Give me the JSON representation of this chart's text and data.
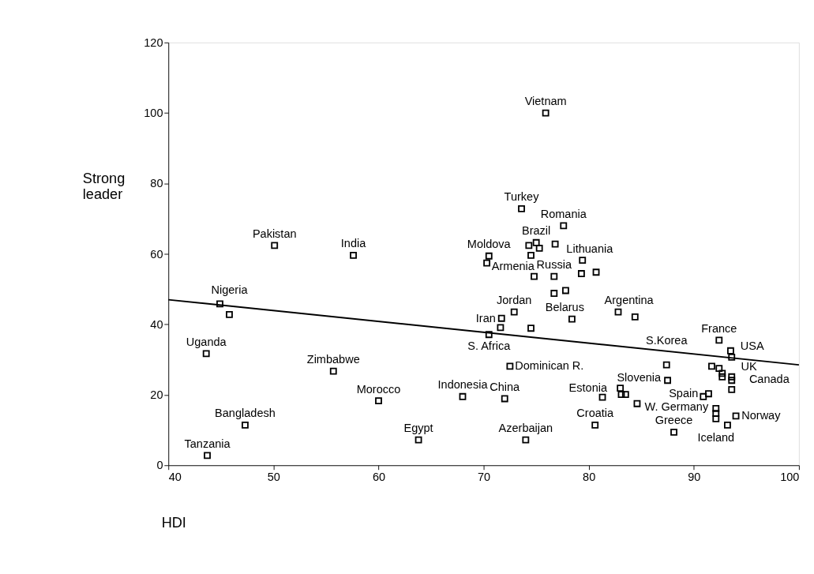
{
  "chart_data": {
    "type": "scatter",
    "xlabel": "HDI",
    "ylabel": "Strong\nleader",
    "xlim": [
      40,
      100
    ],
    "xticks": [
      40,
      50,
      60,
      70,
      80,
      90,
      100
    ],
    "ylim": [
      0,
      120
    ],
    "yticks": [
      0,
      20,
      40,
      60,
      80,
      100,
      120
    ],
    "grid": false,
    "series": [
      {
        "marker": "square",
        "color": "#000000",
        "x": [
          50.1,
          57.6,
          44.9,
          45.8,
          43.6,
          55.7,
          60.0,
          47.3,
          43.7,
          63.8,
          75.9,
          73.6,
          77.6,
          74.3,
          75.0,
          75.3,
          76.8,
          70.5,
          70.3,
          74.5,
          79.4,
          74.8,
          76.7,
          79.3,
          80.7,
          76.7,
          77.8,
          78.4,
          82.8,
          84.4,
          72.9,
          71.7,
          71.6,
          74.5,
          70.5,
          72.5,
          68.0,
          72.0,
          74.0,
          81.3,
          83.0,
          83.1,
          83.5,
          84.6,
          80.6,
          87.5,
          87.4,
          88.1,
          92.4,
          93.5,
          93.6,
          91.7,
          92.4,
          92.7,
          92.7,
          93.6,
          93.6,
          93.6,
          91.4,
          90.9,
          92.1,
          92.1,
          92.1,
          94.0,
          93.2
        ],
        "values": [
          62.4,
          59.6,
          45.8,
          42.8,
          31.7,
          26.7,
          18.3,
          11.4,
          2.8,
          7.2,
          100,
          72.8,
          68.0,
          62.4,
          63.2,
          61.6,
          62.8,
          59.4,
          57.4,
          59.6,
          58.2,
          53.6,
          53.6,
          54.4,
          54.8,
          48.8,
          49.6,
          41.5,
          43.5,
          42.1,
          43.5,
          41.7,
          39.1,
          38.9,
          37.1,
          28.1,
          19.5,
          18.9,
          7.2,
          19.3,
          21.9,
          20.1,
          20.1,
          17.5,
          11.4,
          24.1,
          28.5,
          9.4,
          35.5,
          32.5,
          30.7,
          28.1,
          27.5,
          26.1,
          25.1,
          25.1,
          24.1,
          21.5,
          20.3,
          19.5,
          16.1,
          14.7,
          13.2,
          14.0,
          11.4
        ]
      },
      {
        "type": "line",
        "marker": "none",
        "line_style": "solid",
        "color": "#000000",
        "x": [
          40,
          100
        ],
        "values": [
          47.0,
          28.5
        ]
      }
    ],
    "annotations": [
      {
        "text": "Pakistan",
        "x": 50.1,
        "y": 62.4
      },
      {
        "text": "India",
        "x": 57.6,
        "y": 59.6
      },
      {
        "text": "Nigeria",
        "x": 45.8,
        "y": 42.8
      },
      {
        "text": "Uganda",
        "x": 43.6,
        "y": 31.7
      },
      {
        "text": "Zimbabwe",
        "x": 55.7,
        "y": 26.7
      },
      {
        "text": "Morocco",
        "x": 60.0,
        "y": 18.3
      },
      {
        "text": "Bangladesh",
        "x": 47.3,
        "y": 11.4
      },
      {
        "text": "Tanzania",
        "x": 43.7,
        "y": 2.8
      },
      {
        "text": "Egypt",
        "x": 63.8,
        "y": 7.2
      },
      {
        "text": "Vietnam",
        "x": 75.9,
        "y": 100
      },
      {
        "text": "Turkey",
        "x": 73.6,
        "y": 72.8
      },
      {
        "text": "Romania",
        "x": 77.6,
        "y": 68.0
      },
      {
        "text": "Brazil",
        "x": 75.0,
        "y": 63.2
      },
      {
        "text": "Moldova",
        "x": 70.5,
        "y": 59.4
      },
      {
        "text": "Armenia",
        "x": 74.5,
        "y": 59.6
      },
      {
        "text": "Lithuania",
        "x": 79.4,
        "y": 58.2
      },
      {
        "text": "Russia",
        "x": 76.7,
        "y": 53.6
      },
      {
        "text": "Belarus",
        "x": 78.4,
        "y": 41.5
      },
      {
        "text": "Argentina",
        "x": 82.8,
        "y": 43.5
      },
      {
        "text": "Jordan",
        "x": 72.9,
        "y": 43.5
      },
      {
        "text": "Iran",
        "x": 71.7,
        "y": 41.7
      },
      {
        "text": "S. Africa",
        "x": 70.5,
        "y": 37.1
      },
      {
        "text": "Dominican R.",
        "x": 72.5,
        "y": 28.1
      },
      {
        "text": "Indonesia",
        "x": 68.0,
        "y": 19.5
      },
      {
        "text": "China",
        "x": 72.0,
        "y": 18.9
      },
      {
        "text": "Azerbaijan",
        "x": 74.0,
        "y": 7.2
      },
      {
        "text": "Estonia",
        "x": 83.0,
        "y": 21.9
      },
      {
        "text": "Croatia",
        "x": 80.6,
        "y": 11.4
      },
      {
        "text": "S.Korea",
        "x": 87.4,
        "y": 28.5
      },
      {
        "text": "Slovenia",
        "x": 87.5,
        "y": 24.1
      },
      {
        "text": "Spain",
        "x": 91.4,
        "y": 20.3
      },
      {
        "text": "Greece",
        "x": 88.1,
        "y": 9.4
      },
      {
        "text": "France",
        "x": 92.4,
        "y": 35.5
      },
      {
        "text": "USA",
        "x": 93.5,
        "y": 32.5
      },
      {
        "text": "UK",
        "x": 93.6,
        "y": 30.7
      },
      {
        "text": "Canada",
        "x": 92.4,
        "y": 27.5
      },
      {
        "text": "W. Germany",
        "x": 92.1,
        "y": 16.1
      },
      {
        "text": "Norway",
        "x": 94.0,
        "y": 14.0
      },
      {
        "text": "Iceland",
        "x": 92.1,
        "y": 13.2
      }
    ]
  }
}
